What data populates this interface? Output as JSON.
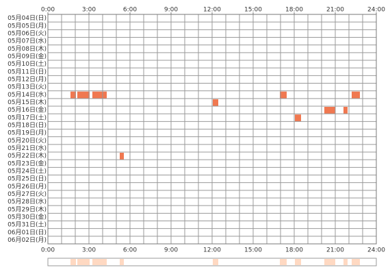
{
  "chart_data": {
    "type": "timeline",
    "xlim": [
      0,
      24
    ],
    "xticks": [
      {
        "value": 0,
        "label": "0:00"
      },
      {
        "value": 3,
        "label": "3:00"
      },
      {
        "value": 6,
        "label": "6:00"
      },
      {
        "value": 9,
        "label": "9:00"
      },
      {
        "value": 12,
        "label": "12:00"
      },
      {
        "value": 15,
        "label": "15:00"
      },
      {
        "value": 18,
        "label": "18:00"
      },
      {
        "value": 21,
        "label": "21:00"
      },
      {
        "value": 24,
        "label": "24:00"
      }
    ],
    "minor_grid_interval": 1,
    "color": "#f07850",
    "summary_color": "#ffd9c2",
    "categories": [
      "05月04日(日)",
      "05月05日(月)",
      "05月06日(火)",
      "05月07日(水)",
      "05月08日(木)",
      "05月09日(金)",
      "05月10日(土)",
      "05月11日(日)",
      "05月12日(月)",
      "05月13日(火)",
      "05月14日(水)",
      "05月15日(木)",
      "05月16日(金)",
      "05月17日(土)",
      "05月18日(日)",
      "05月19日(月)",
      "05月20日(火)",
      "05月21日(水)",
      "05月22日(木)",
      "05月23日(金)",
      "05月24日(土)",
      "05月25日(日)",
      "05月26日(月)",
      "05月27日(火)",
      "05月28日(水)",
      "05月29日(木)",
      "05月30日(金)",
      "05月31日(土)",
      "06月01日(日)",
      "06月02日(月)"
    ],
    "values": [
      [],
      [],
      [],
      [],
      [],
      [],
      [],
      [],
      [],
      [],
      [
        [
          1.65,
          2.05
        ],
        [
          2.15,
          3.05
        ],
        [
          3.25,
          4.3
        ],
        [
          16.95,
          17.45
        ],
        [
          22.2,
          22.8
        ]
      ],
      [
        [
          12.05,
          12.45
        ]
      ],
      [
        [
          20.2,
          21.0
        ],
        [
          21.6,
          21.9
        ]
      ],
      [
        [
          18.05,
          18.5
        ]
      ],
      [],
      [],
      [],
      [],
      [
        [
          5.25,
          5.55
        ]
      ],
      [],
      [],
      [],
      [],
      [],
      [],
      [],
      [],
      [],
      [],
      []
    ]
  }
}
